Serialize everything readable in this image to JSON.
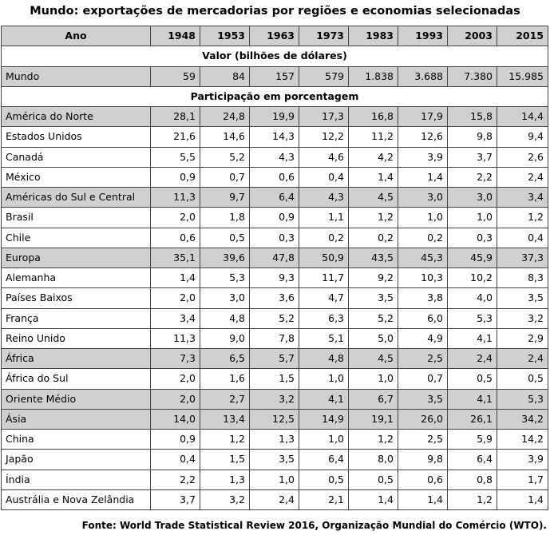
{
  "title": "Mundo: exportações de mercadorias por regiões e economias selecionadas",
  "header": {
    "label": "Ano",
    "years": [
      "1948",
      "1953",
      "1963",
      "1973",
      "1983",
      "1993",
      "2003",
      "2015"
    ]
  },
  "section_value": "Valor (bilhões de dólares)",
  "world_row": {
    "name": "Mundo",
    "values": [
      "59",
      "84",
      "157",
      "579",
      "1.838",
      "3.688",
      "7.380",
      "15.985"
    ]
  },
  "section_share": "Participação em porcentagem",
  "rows": [
    {
      "name": "América do Norte",
      "values": [
        "28,1",
        "24,8",
        "19,9",
        "17,3",
        "16,8",
        "17,9",
        "15,8",
        "14,4"
      ]
    },
    {
      "name": "Estados Unidos",
      "values": [
        "21,6",
        "14,6",
        "14,3",
        "12,2",
        "11,2",
        "12,6",
        "9,8",
        "9,4"
      ]
    },
    {
      "name": "Canadá",
      "values": [
        "5,5",
        "5,2",
        "4,3",
        "4,6",
        "4,2",
        "3,9",
        "3,7",
        "2,6"
      ]
    },
    {
      "name": "México",
      "values": [
        "0,9",
        "0,7",
        "0,6",
        "0,4",
        "1,4",
        "1,4",
        "2,2",
        "2,4"
      ]
    },
    {
      "name": "Américas do Sul e Central",
      "values": [
        "11,3",
        "9,7",
        "6,4",
        "4,3",
        "4,5",
        "3,0",
        "3,0",
        "3,4"
      ]
    },
    {
      "name": "Brasil",
      "values": [
        "2,0",
        "1,8",
        "0,9",
        "1,1",
        "1,2",
        "1,0",
        "1,0",
        "1,2"
      ]
    },
    {
      "name": "Chile",
      "values": [
        "0,6",
        "0,5",
        "0,3",
        "0,2",
        "0,2",
        "0,2",
        "0,3",
        "0,4"
      ]
    },
    {
      "name": "Europa",
      "values": [
        "35,1",
        "39,6",
        "47,8",
        "50,9",
        "43,5",
        "45,3",
        "45,9",
        "37,3"
      ]
    },
    {
      "name": "Alemanha",
      "values": [
        "1,4",
        "5,3",
        "9,3",
        "11,7",
        "9,2",
        "10,3",
        "10,2",
        "8,3"
      ]
    },
    {
      "name": "Países Baixos",
      "values": [
        "2,0",
        "3,0",
        "3,6",
        "4,7",
        "3,5",
        "3,8",
        "4,0",
        "3,5"
      ]
    },
    {
      "name": "França",
      "values": [
        "3,4",
        "4,8",
        "5,2",
        "6,3",
        "5,2",
        "6,0",
        "5,3",
        "3,2"
      ]
    },
    {
      "name": "Reino Unido",
      "values": [
        "11,3",
        "9,0",
        "7,8",
        "5,1",
        "5,0",
        "4,9",
        "4,1",
        "2,9"
      ]
    },
    {
      "name": "África",
      "values": [
        "7,3",
        "6,5",
        "5,7",
        "4,8",
        "4,5",
        "2,5",
        "2,4",
        "2,4"
      ]
    },
    {
      "name": "África do Sul",
      "values": [
        "2,0",
        "1,6",
        "1,5",
        "1,0",
        "1,0",
        "0,7",
        "0,5",
        "0,5"
      ]
    },
    {
      "name": "Oriente Médio",
      "values": [
        "2,0",
        "2,7",
        "3,2",
        "4,1",
        "6,7",
        "3,5",
        "4,1",
        "5,3"
      ]
    },
    {
      "name": "Ásia",
      "values": [
        "14,0",
        "13,4",
        "12,5",
        "14,9",
        "19,1",
        "26,0",
        "26,1",
        "34,2"
      ]
    },
    {
      "name": "China",
      "values": [
        "0,9",
        "1,2",
        "1,3",
        "1,0",
        "1,2",
        "2,5",
        "5,9",
        "14,2"
      ]
    },
    {
      "name": "Japão",
      "values": [
        "0,4",
        "1,5",
        "3,5",
        "6,4",
        "8,0",
        "9,8",
        "6,4",
        "3,9"
      ]
    },
    {
      "name": "Índia",
      "values": [
        "2,2",
        "1,3",
        "1,0",
        "0,5",
        "0,5",
        "0,6",
        "0,8",
        "1,7"
      ]
    },
    {
      "name": "Austrália e Nova Zelândia",
      "values": [
        "3,7",
        "3,2",
        "2,4",
        "2,1",
        "1,4",
        "1,4",
        "1,2",
        "1,4"
      ]
    }
  ],
  "source": "Fonte: World Trade Statistical Review 2016, Organização Mundial do Comércio (WTO).",
  "colors": {
    "region_shade": "#d0d0d0",
    "border": "#444444"
  }
}
